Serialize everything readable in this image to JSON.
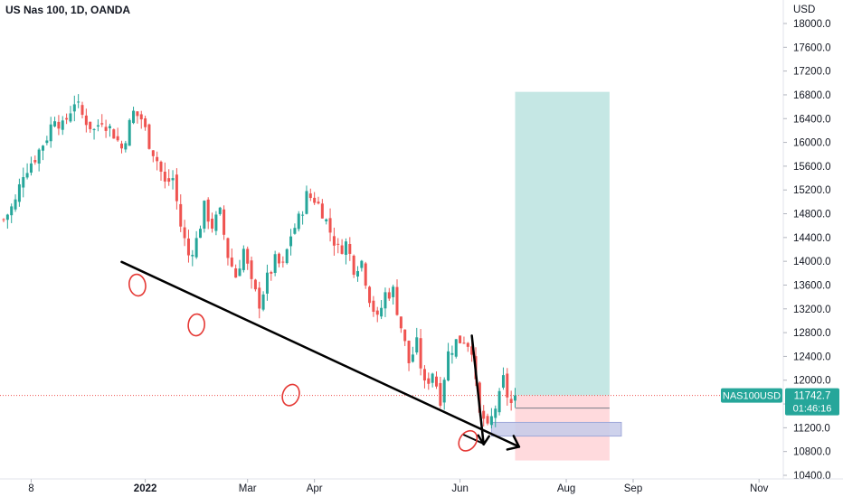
{
  "header": {
    "title": "US Nas 100, 1D, OANDA"
  },
  "colors": {
    "up": "#26a69a",
    "down": "#ef5350",
    "target_zone": "#b2dfdb",
    "stop_zone": "#ffcdd2",
    "entry_zone": "#c5cae9",
    "price_tag": "#26a69a",
    "annotation_black": "#000000",
    "annotation_red": "#e53935"
  },
  "price_tag": {
    "symbol": "NAS100USD",
    "price": "11742.7",
    "countdown": "01:46:16"
  },
  "chart_data": {
    "type": "candlestick",
    "title": "US Nas 100, 1D, OANDA",
    "y_unit": "USD",
    "ylim": [
      10400,
      18200
    ],
    "y_ticks": [
      10400,
      10800,
      11200,
      11600,
      12000,
      12400,
      12800,
      13200,
      13600,
      14000,
      14400,
      14800,
      15200,
      15600,
      16000,
      16400,
      16800,
      17200,
      17600,
      18000
    ],
    "y_tick_labels": [
      "10400.0",
      "10800.0",
      "11200.0",
      "11600.0",
      "12000.0",
      "12400.0",
      "12800.0",
      "13200.0",
      "13600.0",
      "14000.0",
      "14400.0",
      "14800.0",
      "15200.0",
      "15600.0",
      "16000.0",
      "16400.0",
      "16800.0",
      "17200.0",
      "17600.0",
      "18000.0"
    ],
    "x_tick_labels": [
      "8",
      "2022",
      "Mar",
      "Apr",
      "Jun",
      "Aug",
      "Sep",
      "Nov"
    ],
    "x_tick_positions_day": [
      7,
      36,
      62,
      79,
      116,
      143,
      160,
      192
    ],
    "x_axis_unit": "trading day index",
    "last_price": 11742.7,
    "close_path": [
      [
        0,
        14700
      ],
      [
        3,
        15000
      ],
      [
        5,
        15500
      ],
      [
        8,
        15750
      ],
      [
        11,
        16100
      ],
      [
        13,
        16450
      ],
      [
        15,
        16250
      ],
      [
        18,
        16700
      ],
      [
        20,
        16450
      ],
      [
        23,
        16200
      ],
      [
        25,
        16400
      ],
      [
        28,
        16150
      ],
      [
        30,
        15900
      ],
      [
        33,
        16500
      ],
      [
        35,
        16400
      ],
      [
        37,
        16000
      ],
      [
        39,
        15700
      ],
      [
        41,
        15300
      ],
      [
        43,
        15400
      ],
      [
        45,
        14600
      ],
      [
        47,
        14100
      ],
      [
        49,
        14350
      ],
      [
        51,
        14900
      ],
      [
        53,
        14600
      ],
      [
        55,
        14800
      ],
      [
        57,
        14100
      ],
      [
        59,
        13750
      ],
      [
        61,
        14200
      ],
      [
        63,
        13600
      ],
      [
        65,
        13300
      ],
      [
        67,
        13700
      ],
      [
        69,
        14000
      ],
      [
        71,
        13900
      ],
      [
        73,
        14450
      ],
      [
        75,
        14700
      ],
      [
        77,
        15100
      ],
      [
        79,
        15050
      ],
      [
        81,
        14850
      ],
      [
        83,
        14500
      ],
      [
        85,
        14200
      ],
      [
        87,
        14300
      ],
      [
        89,
        13900
      ],
      [
        91,
        14000
      ],
      [
        93,
        13400
      ],
      [
        95,
        13000
      ],
      [
        97,
        13450
      ],
      [
        99,
        13500
      ],
      [
        101,
        12900
      ],
      [
        103,
        12300
      ],
      [
        105,
        12600
      ],
      [
        107,
        11900
      ],
      [
        109,
        12150
      ],
      [
        111,
        11700
      ],
      [
        113,
        12450
      ],
      [
        115,
        12650
      ],
      [
        117,
        12700
      ],
      [
        119,
        12550
      ],
      [
        120,
        11900
      ],
      [
        121,
        11400
      ],
      [
        122,
        11350
      ],
      [
        123,
        11150
      ],
      [
        124,
        11350
      ],
      [
        125,
        11550
      ],
      [
        126,
        11700
      ],
      [
        127,
        12000
      ],
      [
        128,
        11750
      ],
      [
        129,
        11600
      ],
      [
        130,
        11742.7
      ]
    ],
    "positions": [
      {
        "name": "long position target",
        "x_start_day": 130,
        "x_end_day": 154,
        "y_from": 11742.7,
        "y_to": 16850
      },
      {
        "name": "long position stop",
        "x_start_day": 130,
        "x_end_day": 154,
        "y_from": 11742.7,
        "y_to": 10650
      },
      {
        "name": "entry box",
        "x_start_day": 124,
        "x_end_day": 157,
        "y_from": 11290,
        "y_to": 11060
      }
    ],
    "annotations": {
      "trendline": {
        "from": [
          30,
          13990
        ],
        "to": [
          131,
          10880
        ],
        "arrow": true
      },
      "drop_arrow": {
        "from": [
          119,
          12750
        ],
        "to": [
          122,
          10920
        ]
      },
      "small_arrow": {
        "from": [
          117,
          11080
        ],
        "to": [
          122,
          10930
        ]
      },
      "circles_day_price": [
        [
          34,
          13600
        ],
        [
          49,
          12930
        ],
        [
          73,
          11750
        ],
        [
          118,
          10980
        ]
      ]
    }
  }
}
